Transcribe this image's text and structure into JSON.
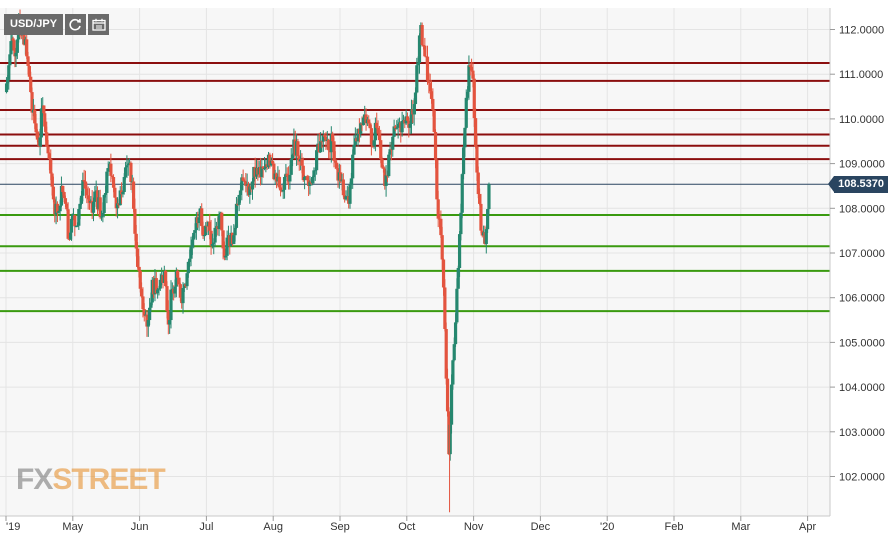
{
  "toolbar": {
    "symbol": "USD/JPY",
    "refresh_icon": "refresh-icon",
    "calendar_icon": "calendar-icon"
  },
  "logo": {
    "fx": "FX",
    "street": "STREET"
  },
  "colors": {
    "up": "#26876f",
    "down": "#e3543f",
    "resistance": "#8b0e0e",
    "support": "#3a9a10",
    "current_line": "#2a4560",
    "grid": "#e4e4e4",
    "background": "#f7f7f7"
  },
  "chart_data": {
    "type": "candlestick",
    "title": "",
    "symbol": "USD/JPY",
    "current_price": "108.5370",
    "ylim": [
      101.2,
      112.4
    ],
    "y_ticks": [
      "112.0000",
      "111.0000",
      "110.0000",
      "109.0000",
      "108.0000",
      "107.0000",
      "106.0000",
      "105.0000",
      "104.0000",
      "103.0000",
      "102.0000"
    ],
    "x_ticks": [
      "'19",
      "May",
      "Jun",
      "Jul",
      "Aug",
      "Sep",
      "Oct",
      "Nov",
      "Dec",
      "'20",
      "Feb",
      "Mar",
      "Apr"
    ],
    "resistance_levels": [
      111.25,
      110.85,
      110.2,
      109.65,
      109.4,
      109.1
    ],
    "support_levels": [
      107.85,
      107.15,
      106.6,
      105.7
    ],
    "grid": true,
    "series_close": [
      [
        0,
        110.6
      ],
      [
        0.05,
        111.2
      ],
      [
        0.1,
        111.8
      ],
      [
        0.14,
        111.4
      ],
      [
        0.2,
        112.2
      ],
      [
        0.26,
        111.9
      ],
      [
        0.32,
        111.4
      ],
      [
        0.38,
        110.6
      ],
      [
        0.44,
        109.9
      ],
      [
        0.5,
        109.4
      ],
      [
        0.56,
        110.3
      ],
      [
        0.6,
        109.7
      ],
      [
        0.66,
        109.1
      ],
      [
        0.72,
        108.2
      ],
      [
        0.78,
        107.9
      ],
      [
        0.84,
        108.5
      ],
      [
        0.9,
        108.1
      ],
      [
        0.96,
        107.3
      ],
      [
        1.0,
        107.8
      ],
      [
        1.06,
        107.6
      ],
      [
        1.12,
        108.1
      ],
      [
        1.18,
        108.6
      ],
      [
        1.24,
        108.2
      ],
      [
        1.3,
        107.9
      ],
      [
        1.36,
        108.4
      ],
      [
        1.42,
        107.8
      ],
      [
        1.48,
        108.3
      ],
      [
        1.54,
        108.9
      ],
      [
        1.6,
        108.7
      ],
      [
        1.66,
        108.0
      ],
      [
        1.72,
        108.4
      ],
      [
        1.78,
        108.7
      ],
      [
        1.84,
        109.0
      ],
      [
        1.9,
        108.6
      ],
      [
        1.96,
        107.1
      ],
      [
        2.02,
        106.2
      ],
      [
        2.08,
        105.6
      ],
      [
        2.14,
        105.5
      ],
      [
        2.2,
        106.4
      ],
      [
        2.26,
        106.1
      ],
      [
        2.32,
        106.4
      ],
      [
        2.38,
        106.6
      ],
      [
        2.44,
        105.4
      ],
      [
        2.5,
        106.2
      ],
      [
        2.56,
        106.6
      ],
      [
        2.62,
        106.0
      ],
      [
        2.68,
        106.3
      ],
      [
        2.74,
        106.8
      ],
      [
        2.8,
        107.3
      ],
      [
        2.86,
        107.8
      ],
      [
        2.92,
        108.0
      ],
      [
        2.98,
        107.4
      ],
      [
        3.04,
        107.7
      ],
      [
        3.1,
        107.2
      ],
      [
        3.16,
        107.6
      ],
      [
        3.22,
        107.9
      ],
      [
        3.28,
        106.9
      ],
      [
        3.34,
        107.4
      ],
      [
        3.4,
        107.2
      ],
      [
        3.46,
        108.1
      ],
      [
        3.52,
        108.4
      ],
      [
        3.58,
        108.6
      ],
      [
        3.64,
        108.3
      ],
      [
        3.7,
        108.6
      ],
      [
        3.76,
        108.9
      ],
      [
        3.82,
        108.7
      ],
      [
        3.88,
        108.9
      ],
      [
        3.94,
        109.2
      ],
      [
        4.0,
        109.0
      ],
      [
        4.06,
        108.6
      ],
      [
        4.12,
        108.4
      ],
      [
        4.18,
        108.7
      ],
      [
        4.24,
        108.6
      ],
      [
        4.3,
        109.2
      ],
      [
        4.36,
        109.5
      ],
      [
        4.42,
        109.1
      ],
      [
        4.48,
        108.7
      ],
      [
        4.54,
        108.5
      ],
      [
        4.6,
        108.7
      ],
      [
        4.66,
        109.3
      ],
      [
        4.72,
        109.5
      ],
      [
        4.78,
        109.6
      ],
      [
        4.84,
        109.3
      ],
      [
        4.9,
        109.5
      ],
      [
        4.96,
        108.9
      ],
      [
        5.02,
        108.6
      ],
      [
        5.08,
        108.2
      ],
      [
        5.14,
        108.1
      ],
      [
        5.2,
        109.2
      ],
      [
        5.26,
        109.5
      ],
      [
        5.32,
        109.9
      ],
      [
        5.38,
        110.1
      ],
      [
        5.44,
        109.9
      ],
      [
        5.5,
        109.4
      ],
      [
        5.56,
        109.8
      ],
      [
        5.62,
        109.1
      ],
      [
        5.68,
        108.5
      ],
      [
        5.74,
        109.2
      ],
      [
        5.8,
        109.6
      ],
      [
        5.86,
        109.8
      ],
      [
        5.92,
        109.7
      ],
      [
        5.98,
        109.9
      ],
      [
        6.04,
        109.8
      ],
      [
        6.1,
        110.1
      ],
      [
        6.16,
        111.2
      ],
      [
        6.22,
        112.1
      ],
      [
        6.28,
        111.4
      ],
      [
        6.34,
        110.8
      ],
      [
        6.4,
        110.2
      ],
      [
        6.46,
        108.2
      ],
      [
        6.52,
        107.4
      ],
      [
        6.58,
        105.3
      ],
      [
        6.64,
        102.5
      ],
      [
        6.7,
        104.6
      ],
      [
        6.76,
        106.2
      ],
      [
        6.82,
        107.9
      ],
      [
        6.88,
        109.8
      ],
      [
        6.94,
        111.2
      ],
      [
        7.0,
        110.9
      ],
      [
        7.06,
        108.8
      ],
      [
        7.12,
        107.5
      ],
      [
        7.18,
        107.2
      ],
      [
        7.24,
        108.54
      ]
    ]
  }
}
